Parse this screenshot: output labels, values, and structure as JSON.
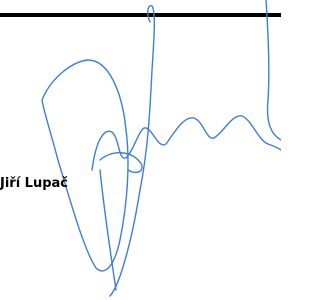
{
  "signature": {
    "name": "Jiří Lupač"
  }
}
